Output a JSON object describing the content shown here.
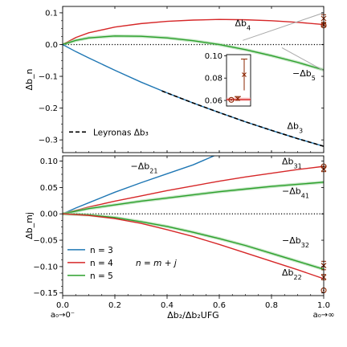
{
  "chart_data": [
    {
      "type": "line",
      "panel": "top",
      "ylabel": "Δb_n",
      "xlim": [
        0,
        1
      ],
      "ylim": [
        -0.34,
        0.12
      ],
      "yticks": [
        "0.1",
        "0.0",
        "−0.1",
        "−0.2",
        "−0.3"
      ],
      "ytick_values": [
        0.1,
        0.0,
        -0.1,
        -0.2,
        -0.3
      ],
      "reference_line": {
        "y": 0,
        "style": "dotted"
      },
      "series": [
        {
          "name": "Δb_4",
          "color": "#d62728",
          "x": [
            0,
            0.05,
            0.1,
            0.2,
            0.3,
            0.4,
            0.5,
            0.6,
            0.7,
            0.8,
            0.9,
            1.0
          ],
          "y": [
            0,
            0.022,
            0.037,
            0.055,
            0.066,
            0.073,
            0.077,
            0.079,
            0.078,
            0.075,
            0.07,
            0.063
          ]
        },
        {
          "name": "−Δb_5",
          "color": "#2ca02c",
          "x": [
            0,
            0.05,
            0.1,
            0.2,
            0.3,
            0.4,
            0.5,
            0.6,
            0.7,
            0.8,
            0.9,
            1.0
          ],
          "y": [
            0,
            0.013,
            0.021,
            0.027,
            0.026,
            0.021,
            0.012,
            0.0,
            -0.016,
            -0.035,
            -0.056,
            -0.08
          ]
        },
        {
          "name": "Δb_3",
          "color": "#1f77b4",
          "x": [
            0,
            0.05,
            0.1,
            0.2,
            0.3,
            0.4,
            0.5,
            0.6,
            0.7,
            0.8,
            0.9,
            1.0
          ],
          "y": [
            0,
            -0.022,
            -0.042,
            -0.081,
            -0.118,
            -0.152,
            -0.184,
            -0.214,
            -0.243,
            -0.27,
            -0.296,
            -0.32
          ]
        },
        {
          "name": "Leyronas Δb_3",
          "color": "#000000",
          "style": "dashed",
          "x": [
            0.38,
            0.5,
            0.6,
            0.7,
            0.8,
            0.9,
            1.0
          ],
          "y": [
            -0.146,
            -0.184,
            -0.214,
            -0.243,
            -0.27,
            -0.296,
            -0.32
          ]
        },
        {
          "name": "",
          "color": "#aaaaaa",
          "x": [
            0.69,
            1.0
          ],
          "y": [
            0.013,
            0.1
          ]
        },
        {
          "name": "",
          "color": "#aaaaaa",
          "x": [
            0.84,
            1.0
          ],
          "y": [
            -0.01,
            -0.082
          ]
        }
      ],
      "endpoints": [
        {
          "x": 1.0,
          "y": 0.082,
          "marker": "x",
          "err": 0.012
        },
        {
          "x": 1.0,
          "y": 0.062,
          "marker": "x",
          "err": 0.003
        },
        {
          "x": 1.0,
          "y": 0.06,
          "marker": "o"
        }
      ],
      "inset": {
        "xlim": [
          0.99,
          1.0
        ],
        "ylim": [
          0.055,
          0.101
        ],
        "yticks": [
          "0.10",
          "0.08",
          "0.06"
        ],
        "ytick_values": [
          0.1,
          0.08,
          0.06
        ],
        "points": [
          {
            "marker": "x",
            "y": 0.083,
            "err": 0.014
          },
          {
            "marker": "x",
            "y": 0.0615,
            "err": 0.002
          },
          {
            "marker": "o",
            "y": 0.0605
          }
        ]
      },
      "annotations": [
        {
          "text": "Δb",
          "sub": "4",
          "x": 0.66,
          "y": 0.058
        },
        {
          "text": "−Δb",
          "sub": "5",
          "x": 0.88,
          "y": -0.1
        },
        {
          "text": "Δb",
          "sub": "3",
          "x": 0.86,
          "y": -0.265
        }
      ],
      "legend": {
        "entries": [
          {
            "label": "Leyronas Δb₃",
            "style": "dashed"
          }
        ],
        "placement": "lower-left"
      }
    },
    {
      "type": "line",
      "panel": "bottom",
      "ylabel": "Δb_mj",
      "xlabel": "Δb₂/Δb₂UFG",
      "xlim": [
        0,
        1
      ],
      "ylim": [
        -0.155,
        0.11
      ],
      "xticks": [
        "0.0",
        "0.2",
        "0.4",
        "0.6",
        "0.8",
        "1.0"
      ],
      "xtick_values": [
        0,
        0.2,
        0.4,
        0.6,
        0.8,
        1.0
      ],
      "xtick_extra": {
        "left": "a₀→0⁻",
        "right": "a₀→∞"
      },
      "yticks": [
        "0.10",
        "0.05",
        "0.00",
        "−0.05",
        "−0.10",
        "−0.15"
      ],
      "ytick_values": [
        0.1,
        0.05,
        0.0,
        -0.05,
        -0.1,
        -0.15
      ],
      "reference_line": {
        "y": 0,
        "style": "dotted"
      },
      "series": [
        {
          "name": "−Δb_21",
          "color": "#1f77b4",
          "x": [
            0,
            0.05,
            0.1,
            0.2,
            0.3,
            0.4,
            0.5,
            0.58
          ],
          "y": [
            0,
            0.011,
            0.021,
            0.041,
            0.059,
            0.076,
            0.093,
            0.11
          ]
        },
        {
          "name": "Δb_31",
          "color": "#d62728",
          "x": [
            0,
            0.1,
            0.2,
            0.3,
            0.4,
            0.5,
            0.6,
            0.7,
            0.8,
            0.9,
            1.0
          ],
          "y": [
            0,
            0.013,
            0.024,
            0.034,
            0.044,
            0.053,
            0.062,
            0.07,
            0.077,
            0.084,
            0.09
          ]
        },
        {
          "name": "−Δb_41",
          "color": "#2ca02c",
          "x": [
            0,
            0.1,
            0.2,
            0.3,
            0.4,
            0.5,
            0.6,
            0.7,
            0.8,
            0.9,
            1.0
          ],
          "y": [
            0,
            0.01,
            0.017,
            0.024,
            0.03,
            0.036,
            0.042,
            0.047,
            0.052,
            0.056,
            0.06
          ]
        },
        {
          "name": "−Δb_32",
          "color": "#2ca02c",
          "x": [
            0,
            0.1,
            0.2,
            0.3,
            0.4,
            0.5,
            0.6,
            0.7,
            0.8,
            0.9,
            1.0
          ],
          "y": [
            0,
            -0.002,
            -0.007,
            -0.015,
            -0.024,
            -0.035,
            -0.047,
            -0.06,
            -0.075,
            -0.09,
            -0.105
          ]
        },
        {
          "name": "Δb_22",
          "color": "#d62728",
          "x": [
            0,
            0.1,
            0.2,
            0.3,
            0.4,
            0.5,
            0.6,
            0.7,
            0.8,
            0.9,
            1.0
          ],
          "y": [
            0,
            -0.003,
            -0.009,
            -0.018,
            -0.03,
            -0.043,
            -0.058,
            -0.074,
            -0.09,
            -0.106,
            -0.123
          ]
        }
      ],
      "endpoints": [
        {
          "x": 1.0,
          "y": 0.085,
          "marker": "x",
          "err": 0.005
        },
        {
          "x": 1.0,
          "y": 0.09,
          "marker": "o"
        },
        {
          "x": 1.0,
          "y": -0.098,
          "marker": "x",
          "err": 0.008
        },
        {
          "x": 1.0,
          "y": -0.12,
          "marker": "x",
          "err": 0.005
        },
        {
          "x": 1.0,
          "y": -0.145,
          "marker": "o"
        }
      ],
      "annotations": [
        {
          "text": "−Δb",
          "sub": "21",
          "x": 0.26,
          "y": 0.085
        },
        {
          "text": "Δb",
          "sub": "31",
          "x": 0.84,
          "y": 0.094
        },
        {
          "text": "−Δb",
          "sub": "41",
          "x": 0.84,
          "y": 0.038
        },
        {
          "text": "−Δb",
          "sub": "32",
          "x": 0.84,
          "y": -0.056
        },
        {
          "text": "Δb",
          "sub": "22",
          "x": 0.84,
          "y": -0.117
        }
      ],
      "legend": {
        "entries": [
          {
            "label": "n = 3",
            "color": "#1f77b4"
          },
          {
            "label": "n = 4",
            "color": "#d62728"
          },
          {
            "label": "n = 5",
            "color": "#2ca02c"
          }
        ],
        "note": "n = m + j",
        "placement": "lower-left"
      }
    }
  ]
}
